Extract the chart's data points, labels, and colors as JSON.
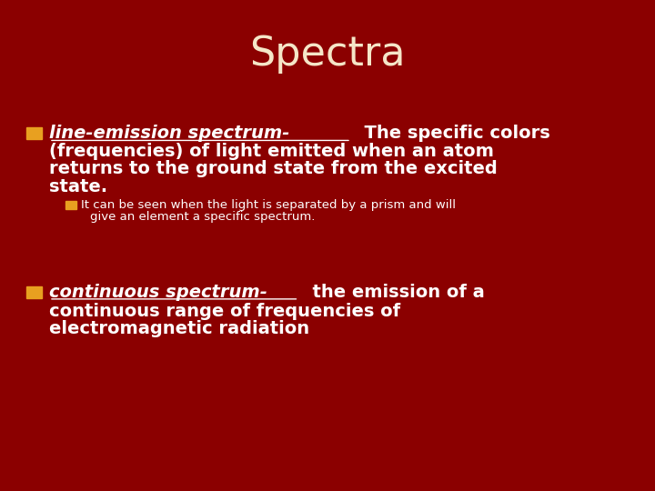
{
  "title": "Spectra",
  "title_color": "#F5E6C8",
  "title_fontsize": 32,
  "background_color": "#8B0000",
  "bullet_color": "#E8A020",
  "bullet1_term": "line-emission spectrum-",
  "bullet2_term": "continuous spectrum-",
  "text_color": "#FFFFFF",
  "term_color": "#FFFFFF",
  "main_fontsize": 14,
  "sub_fontsize": 9.5,
  "bullet1_lines": [
    "(frequencies) of light emitted when an atom",
    "returns to the ground state from the excited",
    "state."
  ],
  "bullet1_inline": "  The specific colors",
  "sub_bullet_line1": "It can be seen when the light is separated by a prism and will",
  "sub_bullet_line2": "give an element a specific spectrum.",
  "bullet2_inline": "  the emission of a",
  "bullet2_lines": [
    "continuous range of frequencies of",
    "electromagnetic radiation"
  ]
}
